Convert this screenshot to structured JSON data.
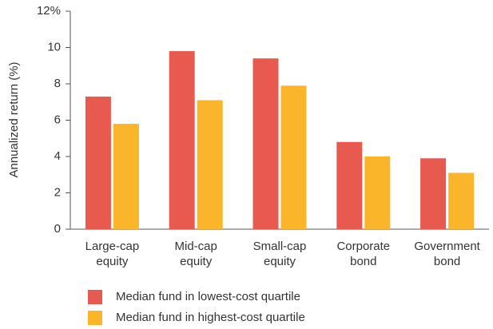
{
  "chart_data": {
    "type": "bar",
    "y_label": "Annualized return (%)",
    "categories": [
      "Large-cap equity",
      "Mid-cap equity",
      "Small-cap equity",
      "Corporate bond",
      "Government bond"
    ],
    "series": [
      {
        "name": "Median fund in lowest-cost quartile",
        "color": "#e8594f",
        "values": [
          7.3,
          9.8,
          9.4,
          4.8,
          3.9
        ]
      },
      {
        "name": "Median fund in highest-cost quartile",
        "color": "#fbb52b",
        "values": [
          5.8,
          7.1,
          7.9,
          4.0,
          3.1
        ]
      }
    ],
    "ylim": [
      0,
      12
    ],
    "yticks": [
      0,
      2,
      4,
      6,
      8,
      10,
      {
        "value": 12,
        "label": "12%"
      }
    ],
    "grid": false
  }
}
